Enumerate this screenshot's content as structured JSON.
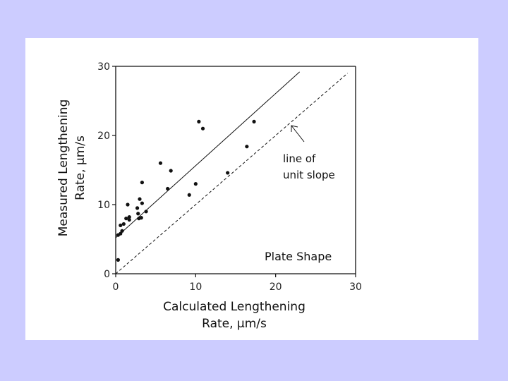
{
  "chart_data": {
    "type": "scatter",
    "title": "",
    "xlabel_lines": [
      "Calculated Lengthening",
      "Rate, μm/s"
    ],
    "ylabel_lines": [
      "Measured Lengthening",
      "Rate, μm/s"
    ],
    "xlim": [
      0,
      30
    ],
    "ylim": [
      0,
      30
    ],
    "xticks": [
      "0",
      "10",
      "20",
      "30"
    ],
    "yticks": [
      "0",
      "10",
      "20",
      "30"
    ],
    "grid": false,
    "legend": "none",
    "inset_label": "Plate Shape",
    "annotation_lines": [
      "line of",
      "unit slope"
    ],
    "points": [
      {
        "x": 0.3,
        "y": 2.0
      },
      {
        "x": 0.3,
        "y": 5.6
      },
      {
        "x": 0.6,
        "y": 5.8
      },
      {
        "x": 0.8,
        "y": 6.2
      },
      {
        "x": 0.6,
        "y": 7.0
      },
      {
        "x": 1.0,
        "y": 7.2
      },
      {
        "x": 1.3,
        "y": 8.0
      },
      {
        "x": 1.5,
        "y": 10.0
      },
      {
        "x": 1.7,
        "y": 8.2
      },
      {
        "x": 1.7,
        "y": 7.8
      },
      {
        "x": 2.7,
        "y": 9.5
      },
      {
        "x": 2.8,
        "y": 8.7
      },
      {
        "x": 2.9,
        "y": 8.0
      },
      {
        "x": 3.0,
        "y": 10.8
      },
      {
        "x": 3.2,
        "y": 8.1
      },
      {
        "x": 3.3,
        "y": 13.2
      },
      {
        "x": 3.3,
        "y": 10.2
      },
      {
        "x": 3.8,
        "y": 9.0
      },
      {
        "x": 5.6,
        "y": 16.0
      },
      {
        "x": 6.5,
        "y": 12.3
      },
      {
        "x": 6.9,
        "y": 14.9
      },
      {
        "x": 9.2,
        "y": 11.4
      },
      {
        "x": 10.0,
        "y": 13.0
      },
      {
        "x": 10.4,
        "y": 22.0
      },
      {
        "x": 10.9,
        "y": 21.0
      },
      {
        "x": 14.0,
        "y": 14.6
      },
      {
        "x": 16.4,
        "y": 18.4
      },
      {
        "x": 17.3,
        "y": 22.0
      }
    ],
    "lines": [
      {
        "style": "solid",
        "x": [
          0,
          23
        ],
        "y": [
          5.2,
          29.2
        ]
      },
      {
        "style": "dashed",
        "x": [
          0,
          29
        ],
        "y": [
          0,
          29
        ]
      }
    ]
  }
}
